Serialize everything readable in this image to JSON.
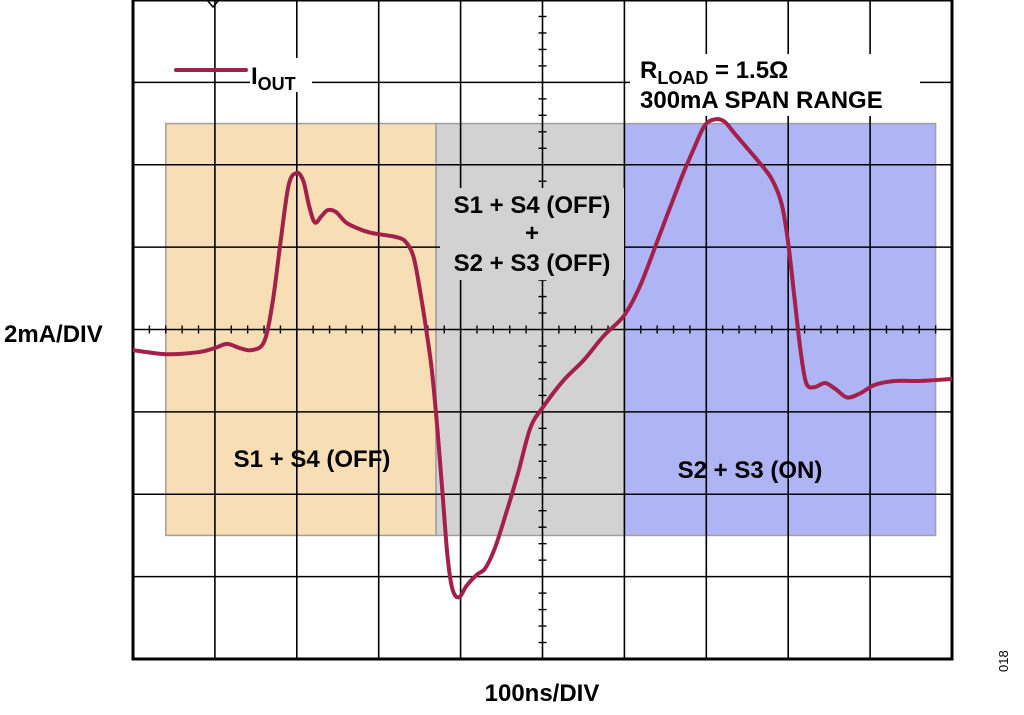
{
  "figure_id": "018",
  "chart_data": {
    "type": "line",
    "title": "",
    "xlabel": "100ns/DIV",
    "ylabel": "2mA/DIV",
    "x_unit": "ns",
    "y_unit": "mA",
    "xlim": [
      -500,
      500
    ],
    "ylim": [
      -8,
      8
    ],
    "grid": true,
    "x_divisions": 10,
    "y_divisions": 8,
    "legend": {
      "position": "top-left",
      "entries": [
        {
          "name": "I",
          "subscript": "OUT",
          "color": "#a3204a"
        }
      ]
    },
    "annotations": {
      "rload": {
        "prefix": "R",
        "subscript": "LOAD",
        "value": " = 1.5Ω"
      },
      "span": "300mA SPAN RANGE"
    },
    "regions": [
      {
        "label": "S1 + S4 (OFF)",
        "x_start": -460,
        "x_end": -130,
        "y_low": -5.0,
        "y_high": 5.0,
        "color": "#f7deb4"
      },
      {
        "label": [
          "S1 + S4 (OFF)",
          "+",
          "S2 + S3 (OFF)"
        ],
        "x_start": -130,
        "x_end": 100,
        "y_low": -5.0,
        "y_high": 5.0,
        "color": "#d2d2d2"
      },
      {
        "label": "S2 + S3 (ON)",
        "x_start": 100,
        "x_end": 480,
        "y_low": -5.0,
        "y_high": 5.0,
        "color": "#aeb4f4"
      }
    ],
    "series": [
      {
        "name": "I",
        "color": "#a3204a",
        "points": [
          [
            -500,
            -0.5
          ],
          [
            -460,
            -0.6
          ],
          [
            -420,
            -0.55
          ],
          [
            -400,
            -0.45
          ],
          [
            -385,
            -0.35
          ],
          [
            -370,
            -0.45
          ],
          [
            -355,
            -0.5
          ],
          [
            -340,
            -0.3
          ],
          [
            -330,
            0.6
          ],
          [
            -320,
            2.1
          ],
          [
            -310,
            3.5
          ],
          [
            -300,
            3.8
          ],
          [
            -292,
            3.6
          ],
          [
            -285,
            3.0
          ],
          [
            -278,
            2.6
          ],
          [
            -270,
            2.75
          ],
          [
            -262,
            2.9
          ],
          [
            -252,
            2.85
          ],
          [
            -240,
            2.6
          ],
          [
            -225,
            2.45
          ],
          [
            -210,
            2.35
          ],
          [
            -195,
            2.3
          ],
          [
            -180,
            2.25
          ],
          [
            -168,
            2.15
          ],
          [
            -158,
            1.8
          ],
          [
            -150,
            1.0
          ],
          [
            -142,
            0.0
          ],
          [
            -135,
            -1.0
          ],
          [
            -128,
            -2.5
          ],
          [
            -122,
            -4.0
          ],
          [
            -116,
            -5.5
          ],
          [
            -110,
            -6.3
          ],
          [
            -102,
            -6.5
          ],
          [
            -92,
            -6.2
          ],
          [
            -80,
            -5.95
          ],
          [
            -70,
            -5.8
          ],
          [
            -58,
            -5.3
          ],
          [
            -45,
            -4.5
          ],
          [
            -30,
            -3.5
          ],
          [
            -15,
            -2.4
          ],
          [
            0,
            -1.9
          ],
          [
            25,
            -1.25
          ],
          [
            50,
            -0.75
          ],
          [
            75,
            -0.15
          ],
          [
            100,
            0.35
          ],
          [
            120,
            1.1
          ],
          [
            145,
            2.4
          ],
          [
            170,
            3.7
          ],
          [
            185,
            4.4
          ],
          [
            198,
            4.95
          ],
          [
            210,
            5.1
          ],
          [
            222,
            5.05
          ],
          [
            235,
            4.75
          ],
          [
            250,
            4.4
          ],
          [
            265,
            4.05
          ],
          [
            280,
            3.65
          ],
          [
            292,
            3.05
          ],
          [
            300,
            2.1
          ],
          [
            308,
            0.7
          ],
          [
            315,
            -0.5
          ],
          [
            322,
            -1.3
          ],
          [
            332,
            -1.4
          ],
          [
            345,
            -1.3
          ],
          [
            358,
            -1.45
          ],
          [
            372,
            -1.65
          ],
          [
            388,
            -1.55
          ],
          [
            405,
            -1.35
          ],
          [
            430,
            -1.25
          ],
          [
            460,
            -1.25
          ],
          [
            500,
            -1.2
          ]
        ]
      }
    ]
  }
}
